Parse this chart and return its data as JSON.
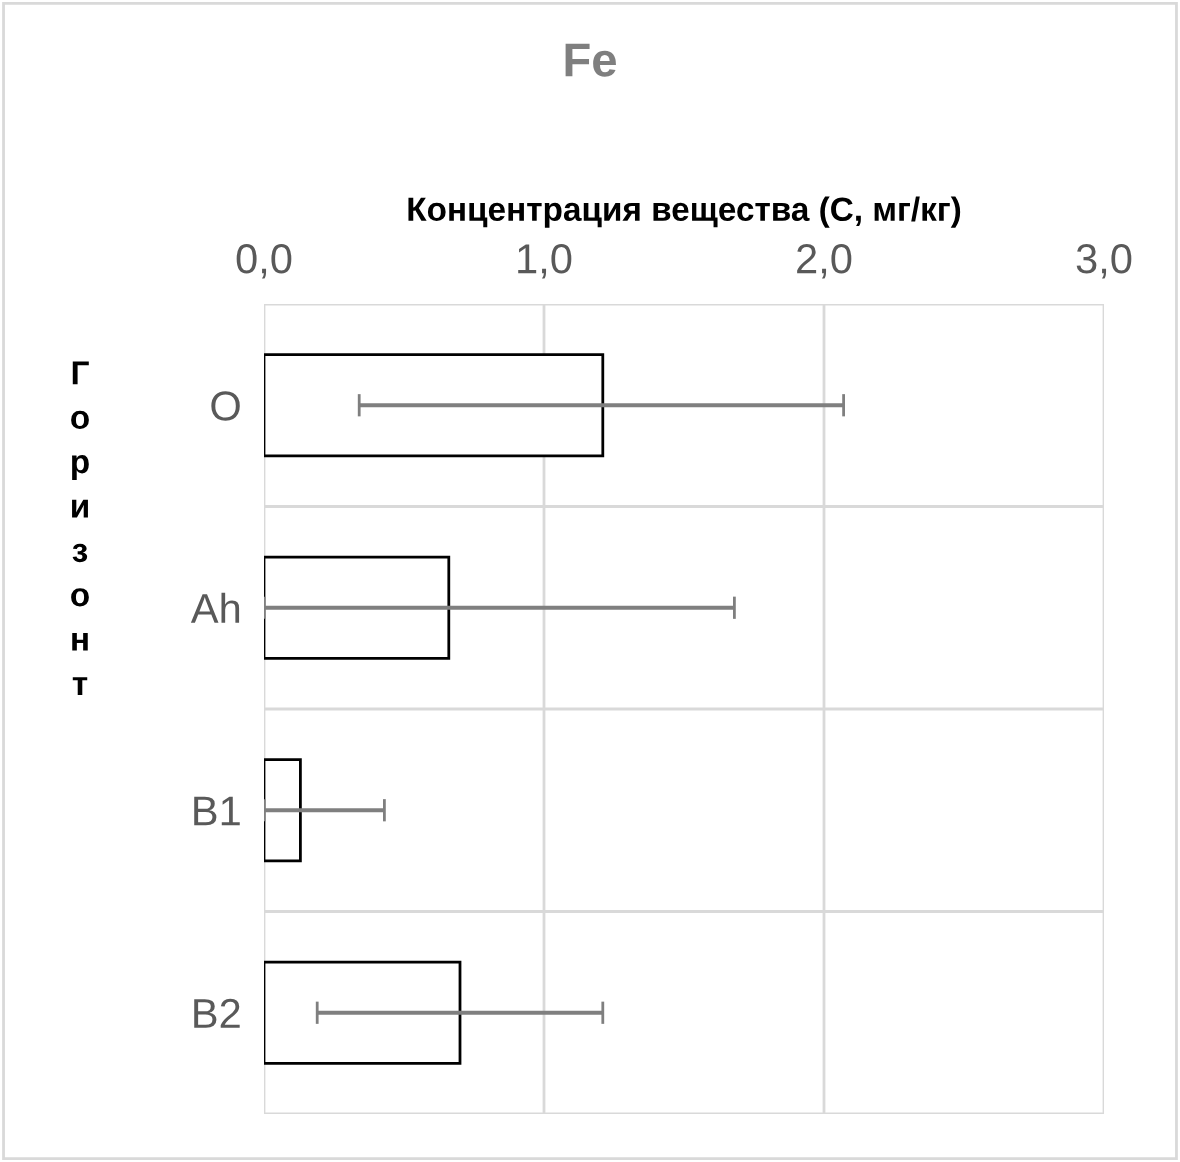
{
  "chart_data": {
    "type": "bar",
    "orientation": "horizontal",
    "title": "Fe",
    "xlabel": "Концентрация вещества (C, мг/кг)",
    "ylabel": "Горизонт",
    "categories": [
      "O",
      "Ah",
      "B1",
      "B2"
    ],
    "values": [
      1.21,
      0.66,
      0.13,
      0.7
    ],
    "errors": [
      [
        0.34,
        2.07
      ],
      [
        0.0,
        1.68
      ],
      [
        0.0,
        0.43
      ],
      [
        0.19,
        1.21
      ]
    ],
    "color": "#ffffff",
    "xlim": [
      0,
      3
    ],
    "xticks": [
      {
        "value": 0,
        "label": "0,0"
      },
      {
        "value": 1,
        "label": "1,0"
      },
      {
        "value": 2,
        "label": "2,0"
      },
      {
        "value": 3,
        "label": "3,0"
      }
    ],
    "grid": true,
    "legend": false
  }
}
